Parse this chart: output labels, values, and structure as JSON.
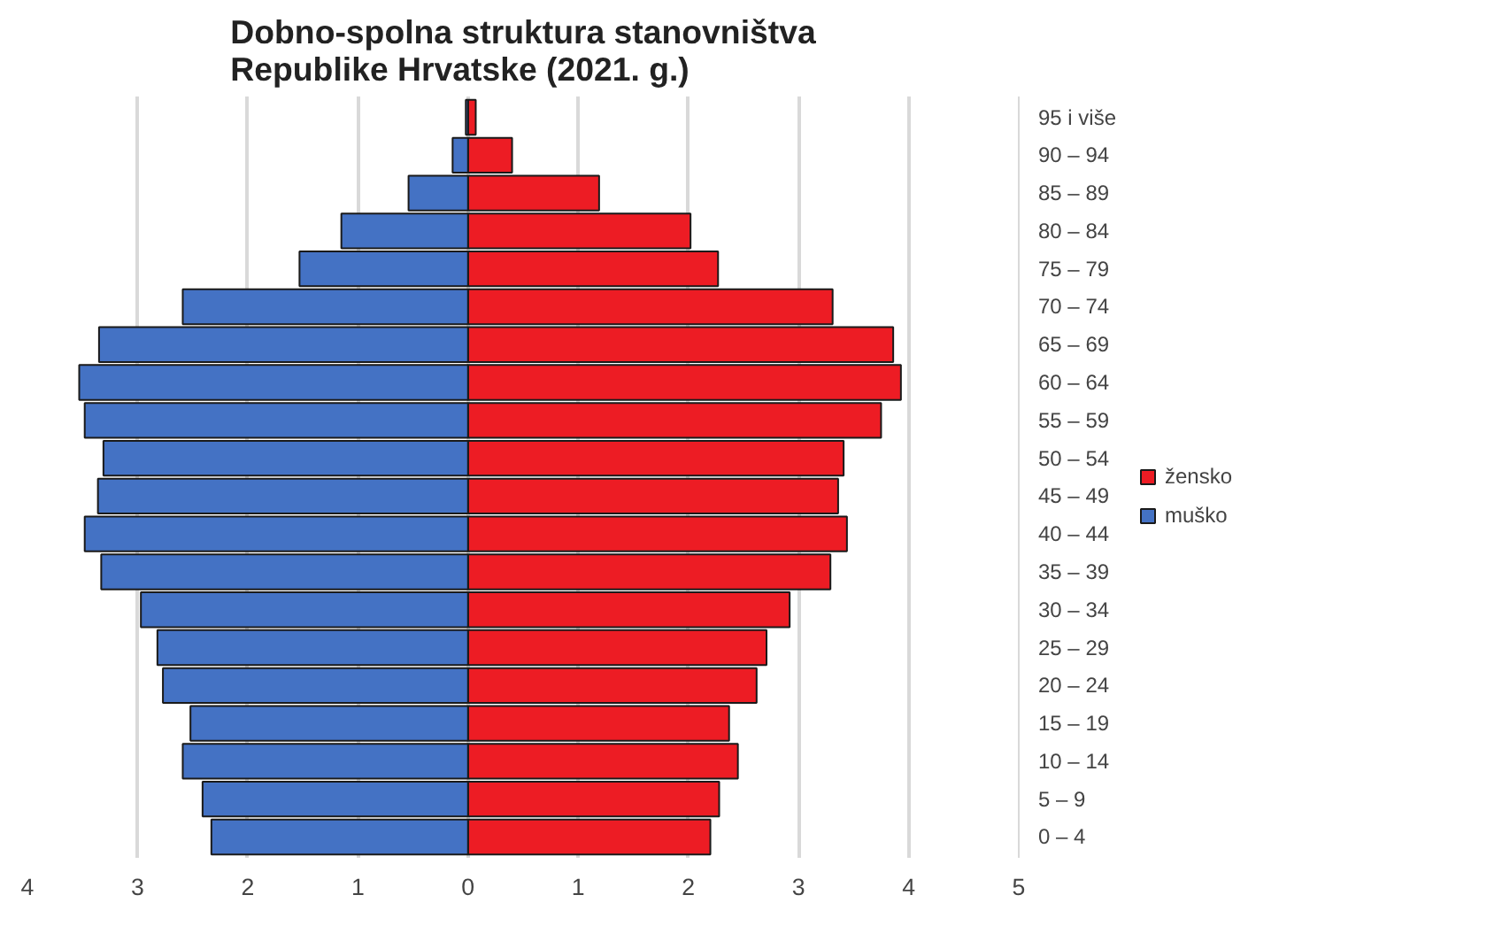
{
  "chart_data": {
    "type": "bar",
    "orientation": "horizontal",
    "title": "Dobno-spolna struktura stanovništva\nRepublike Hrvatske (2021. g.)",
    "categories": [
      "95 i više",
      "90 – 94",
      "85 – 89",
      "80 – 84",
      "75 – 79",
      "70 – 74",
      "65 – 69",
      "60 – 64",
      "55 – 59",
      "50 – 54",
      "45 – 49",
      "40 – 44",
      "35 – 39",
      "30 – 34",
      "25 – 29",
      "20 – 24",
      "15 – 19",
      "10 – 14",
      "5 – 9",
      "0 – 4"
    ],
    "series": [
      {
        "name": "žensko",
        "color": "#ed1c24",
        "values": [
          0.07,
          0.4,
          1.19,
          2.02,
          2.27,
          3.31,
          3.86,
          3.93,
          3.75,
          3.41,
          3.36,
          3.44,
          3.29,
          2.92,
          2.71,
          2.62,
          2.37,
          2.45,
          2.28,
          2.2
        ]
      },
      {
        "name": "muško",
        "color": "#4472c4",
        "values": [
          -0.02,
          -0.14,
          -0.54,
          -1.15,
          -1.53,
          -2.59,
          -3.35,
          -3.53,
          -3.48,
          -3.31,
          -3.36,
          -3.48,
          -3.33,
          -2.97,
          -2.82,
          -2.77,
          -2.52,
          -2.59,
          -2.41,
          -2.33
        ]
      }
    ],
    "xlim": [
      -4,
      5
    ],
    "xticks": [
      {
        "value": -4,
        "label": "4"
      },
      {
        "value": -3,
        "label": "3"
      },
      {
        "value": -2,
        "label": "2"
      },
      {
        "value": -1,
        "label": "1"
      },
      0,
      1,
      2,
      3,
      4,
      5
    ],
    "grid": "x",
    "legend": "right",
    "stacked": true
  }
}
